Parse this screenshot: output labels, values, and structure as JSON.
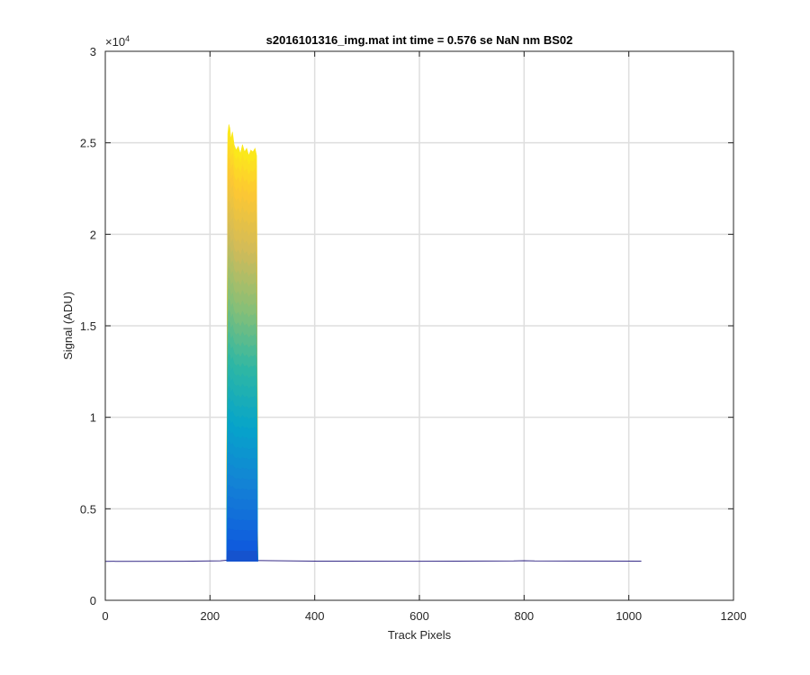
{
  "chart_data": {
    "type": "line",
    "title": "s2016101316_img.mat int time = 0.576 se  NaN nm BS02",
    "xlabel": "Track Pixels",
    "ylabel": "Signal (ADU)",
    "xlim": [
      0,
      1200
    ],
    "ylim": [
      0,
      30000
    ],
    "x_ticks": [
      "0",
      "200",
      "400",
      "600",
      "800",
      "1000",
      "1200"
    ],
    "y_ticks": [
      "0",
      "0.5",
      "1",
      "1.5",
      "2",
      "2.5",
      "3"
    ],
    "y_exponent_base": "×10",
    "y_exponent_power": "4",
    "grid": true,
    "colormap": [
      "#352a87",
      "#0f5cdd",
      "#1481d6",
      "#06a4ca",
      "#2eb7a4",
      "#87bf77",
      "#d1bb59",
      "#fec832",
      "#f9fb0e"
    ],
    "baseline": {
      "x_range": [
        0,
        1024
      ],
      "value": 2130,
      "points": [
        [
          0,
          2130
        ],
        [
          150,
          2135
        ],
        [
          220,
          2160
        ],
        [
          232,
          2190
        ],
        [
          300,
          2170
        ],
        [
          400,
          2140
        ],
        [
          600,
          2135
        ],
        [
          780,
          2150
        ],
        [
          800,
          2165
        ],
        [
          820,
          2150
        ],
        [
          1024,
          2140
        ]
      ]
    },
    "peak_band": {
      "x_start": 232,
      "x_end": 291,
      "series_count": 40,
      "max_profile": [
        [
          232,
          2400
        ],
        [
          234,
          25500
        ],
        [
          236,
          26000
        ],
        [
          238,
          25800
        ],
        [
          240,
          25200
        ],
        [
          243,
          25600
        ],
        [
          246,
          24900
        ],
        [
          250,
          24600
        ],
        [
          254,
          24800
        ],
        [
          258,
          24400
        ],
        [
          262,
          24900
        ],
        [
          266,
          24500
        ],
        [
          270,
          24700
        ],
        [
          274,
          24300
        ],
        [
          278,
          24600
        ],
        [
          282,
          24500
        ],
        [
          286,
          24700
        ],
        [
          289,
          24300
        ],
        [
          291,
          2300
        ]
      ]
    }
  }
}
